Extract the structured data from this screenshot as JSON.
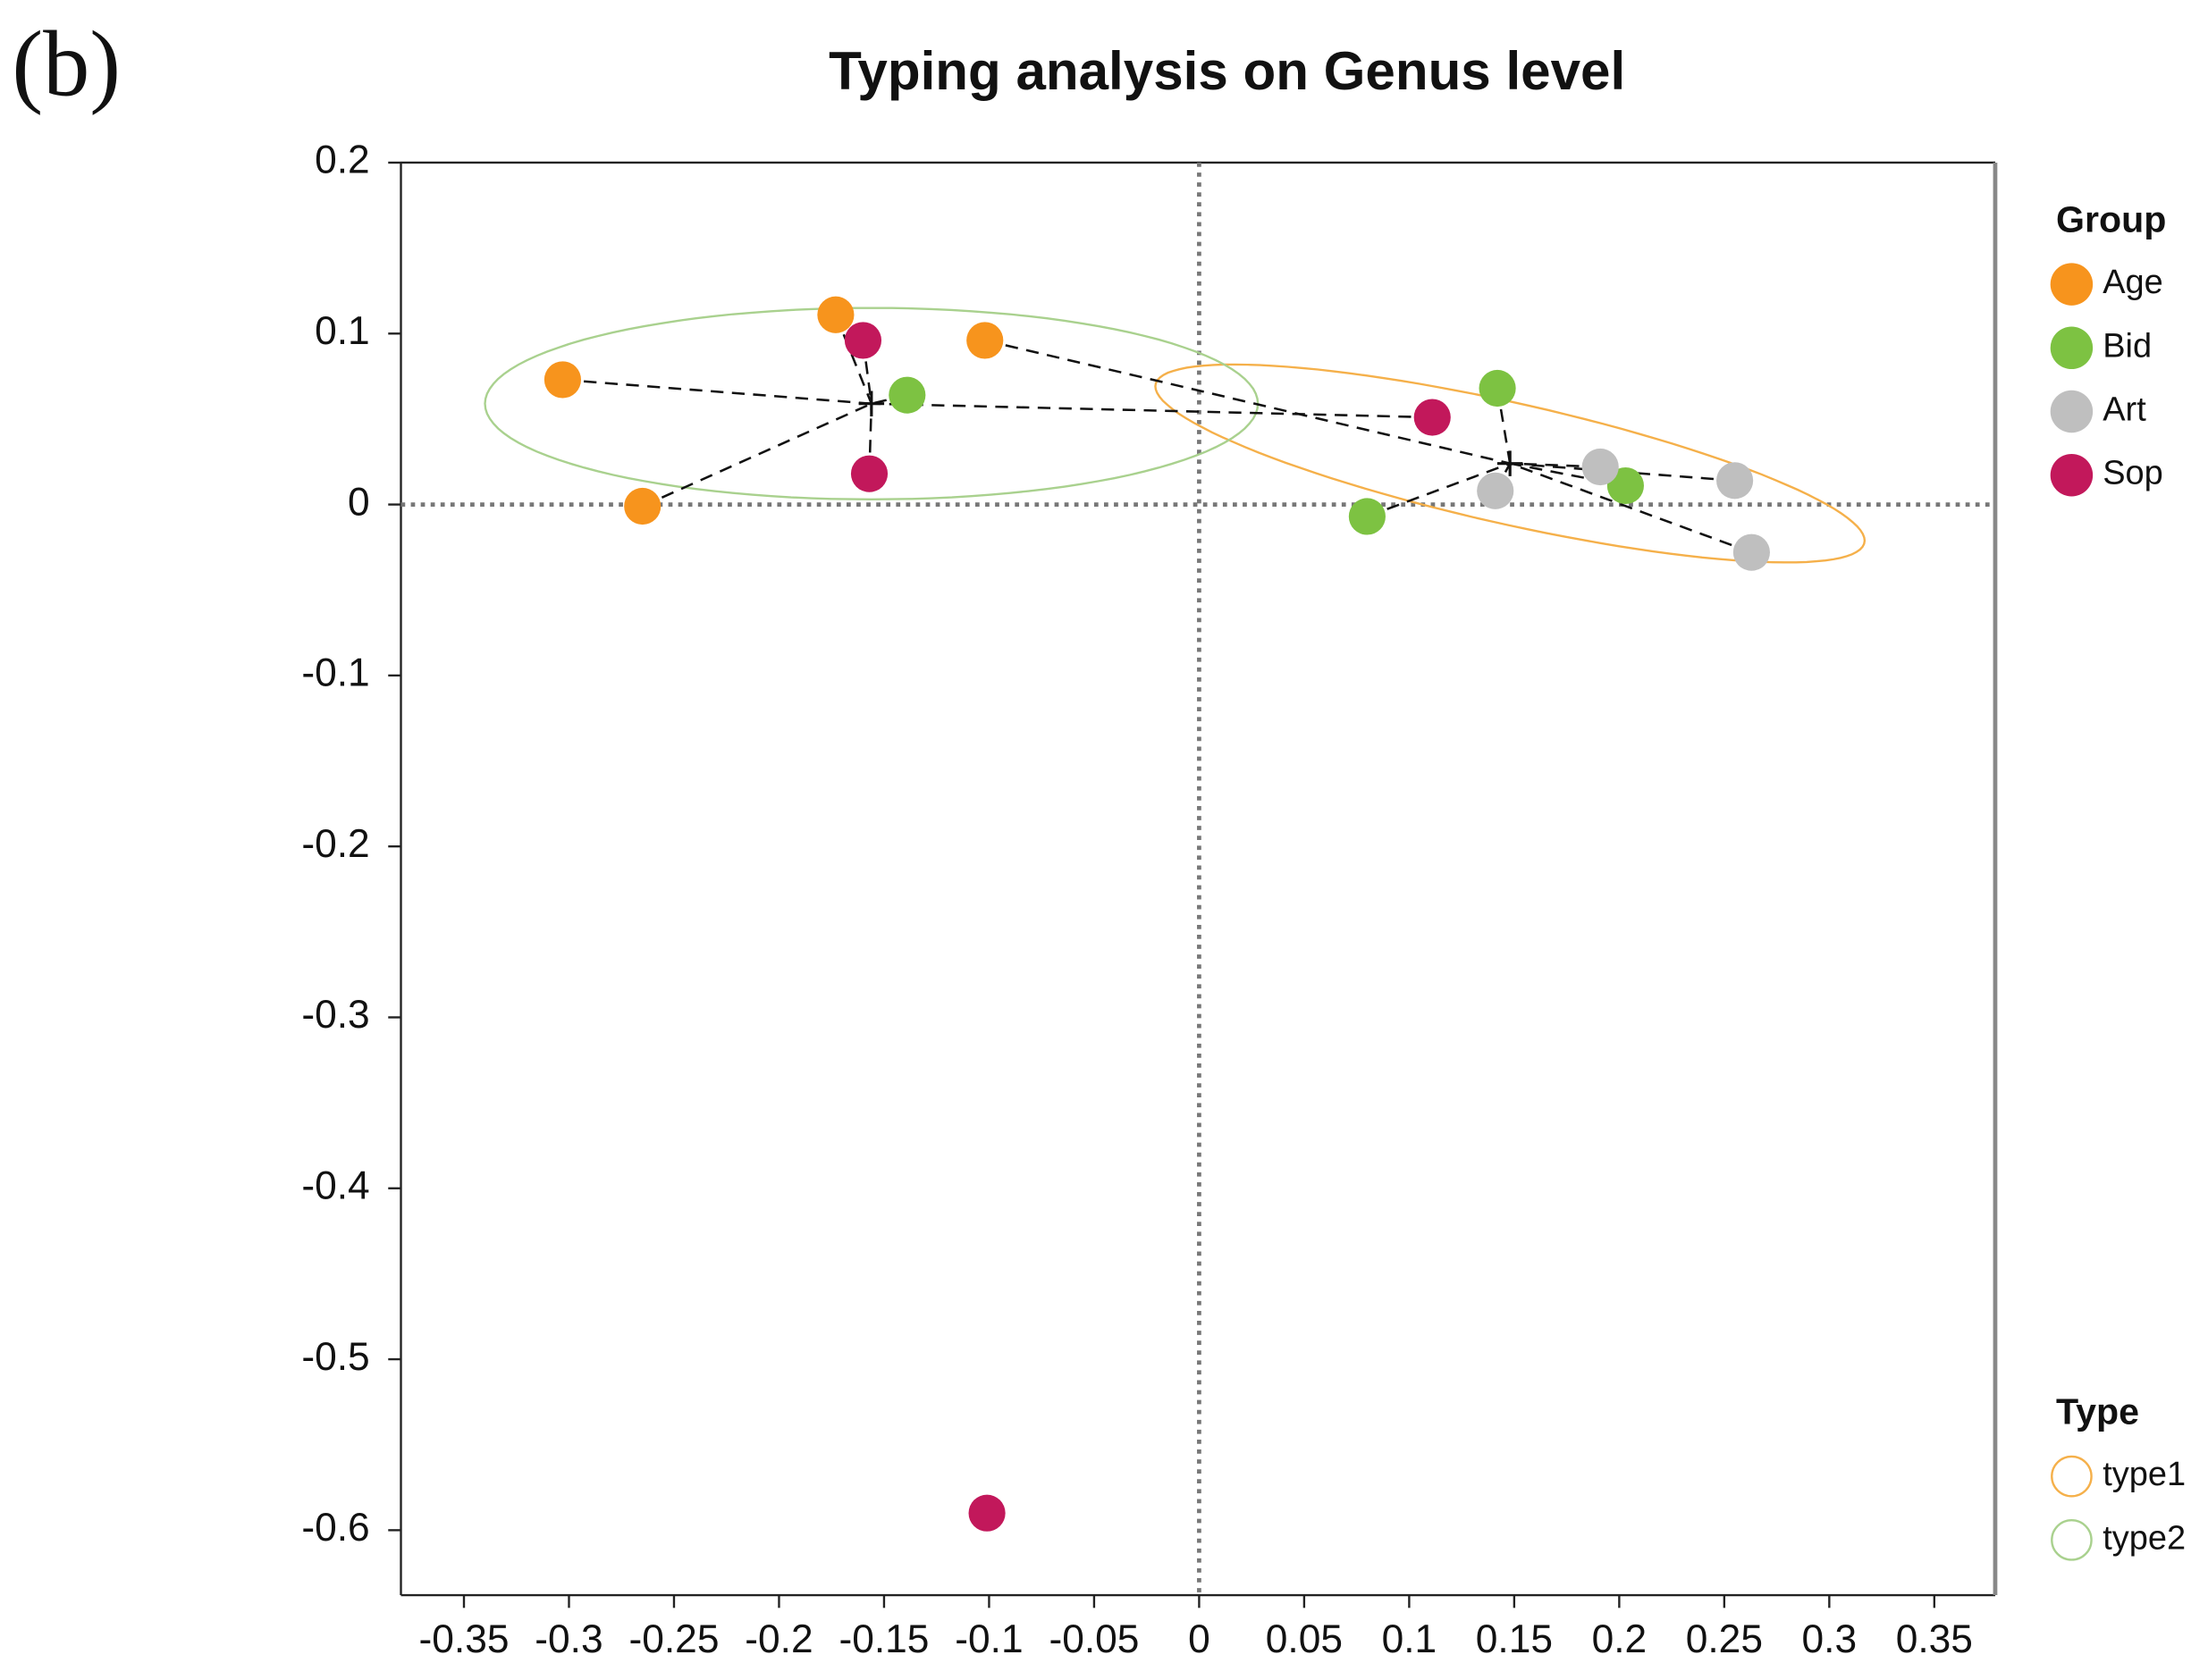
{
  "chart_data": {
    "type": "scatter",
    "panel_label": "(b)",
    "title": "Typing analysis on Genus level",
    "xlim": [
      -0.38,
      0.379
    ],
    "ylim": [
      -0.638,
      0.2
    ],
    "xticks": [
      -0.35,
      -0.3,
      -0.25,
      -0.2,
      -0.15,
      -0.1,
      -0.05,
      0,
      0.05,
      0.1,
      0.15,
      0.2,
      0.25,
      0.3,
      0.35
    ],
    "yticks": [
      0.2,
      0.1,
      0,
      -0.1,
      -0.2,
      -0.3,
      -0.4,
      -0.5,
      -0.6
    ],
    "zero_lines": true,
    "legend_title": "Group",
    "type_legend_title": "Type",
    "series": [
      {
        "name": "Age",
        "color": "#f7941d",
        "x": [
          -0.303,
          -0.173,
          -0.102,
          -0.265
        ],
        "y": [
          0.073,
          0.111,
          0.096,
          -0.001
        ],
        "types": [
          "type2",
          "type2",
          "type1",
          "type2"
        ]
      },
      {
        "name": "Bid",
        "color": "#7dc242",
        "x": [
          -0.139,
          0.142,
          0.08,
          0.203
        ],
        "y": [
          0.064,
          0.068,
          -0.007,
          0.011
        ],
        "types": [
          "type2",
          "type1",
          "type1",
          "type1"
        ]
      },
      {
        "name": "Art",
        "color": "#bfbfbf",
        "x": [
          0.191,
          0.255,
          0.263,
          0.141
        ],
        "y": [
          0.022,
          0.014,
          -0.028,
          0.008
        ],
        "types": [
          "type1",
          "type1",
          "type1",
          "type1"
        ]
      },
      {
        "name": "Sop",
        "color": "#c2185b",
        "x": [
          -0.16,
          -0.157,
          0.111,
          -0.101
        ],
        "y": [
          0.096,
          0.018,
          0.051,
          -0.59
        ],
        "types": [
          "type2",
          "type2",
          "type2",
          null
        ]
      }
    ],
    "type_groups": [
      {
        "name": "type1",
        "color": "#f5b04a",
        "center": [
          0.148,
          0.024
        ],
        "ellipse": {
          "rx": 0.175,
          "ry": 0.035,
          "angle": -15.6
        }
      },
      {
        "name": "type2",
        "color": "#a9d18e",
        "center": [
          -0.156,
          0.059
        ],
        "ellipse": {
          "rx": 0.184,
          "ry": 0.056,
          "angle": 0
        }
      }
    ]
  }
}
